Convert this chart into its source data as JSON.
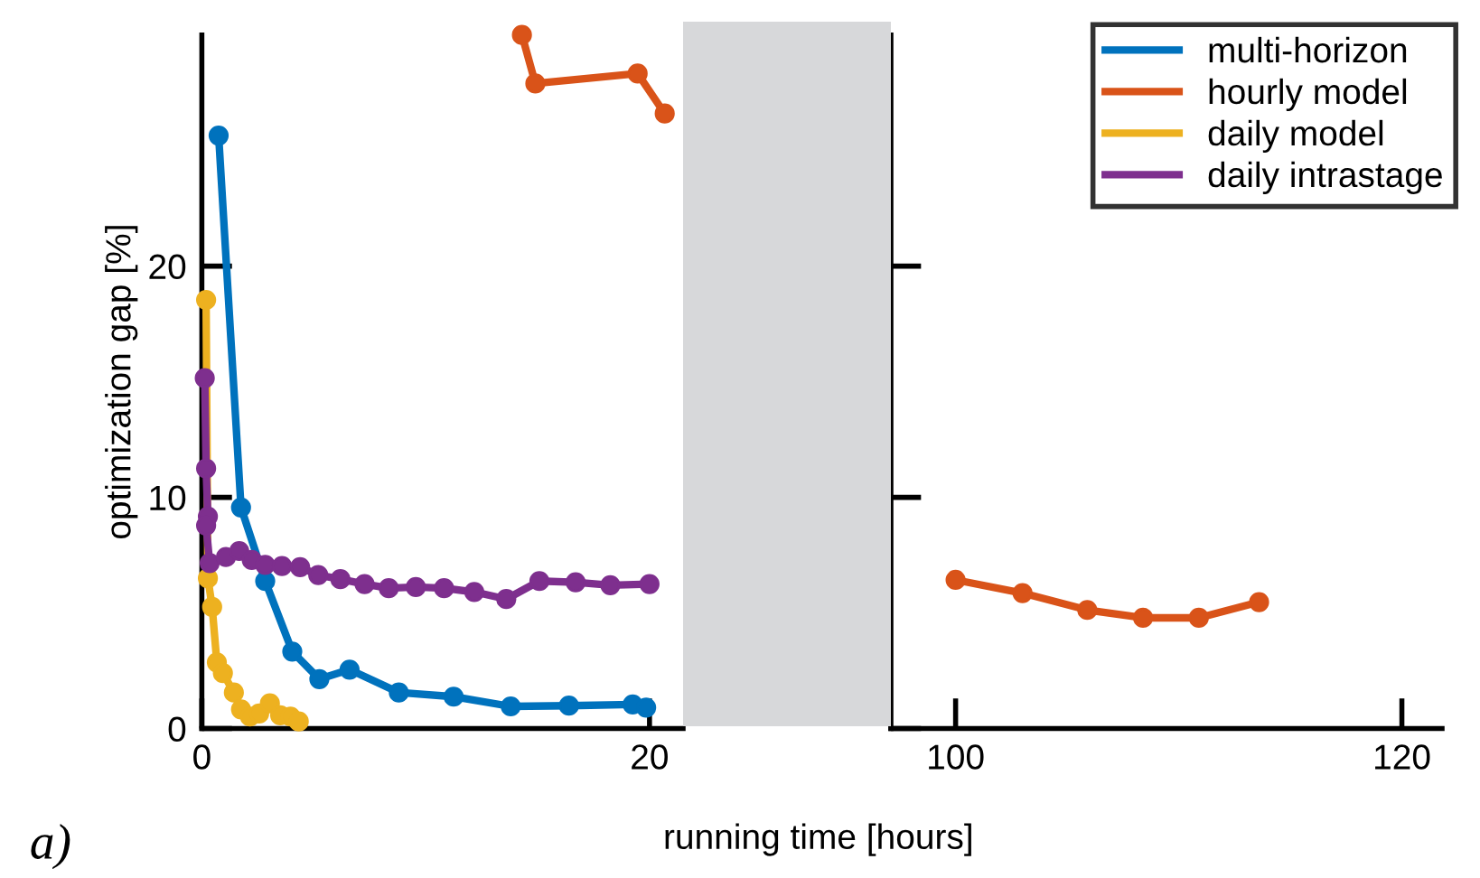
{
  "chart_data": [
    {
      "type": "line",
      "xlabel": "running time [hours]",
      "ylabel": "optimization gap [%]",
      "xlim": [
        0,
        21.5
      ],
      "xticks": [
        0,
        20
      ],
      "ylim": [
        0,
        30
      ],
      "yticks": [
        0,
        10,
        20
      ],
      "marker": "circle",
      "line_style": "solid",
      "grid": false,
      "legend": "top right",
      "annotations": [
        "a)"
      ],
      "series": [
        {
          "name": "multi-horizon",
          "color": "#0072bd",
          "x": [
            0.75,
            1.75,
            2.83,
            4.04,
            5.25,
            6.6,
            8.8,
            11.25,
            13.8,
            16.4,
            19.25,
            19.85
          ],
          "values": [
            25.65,
            9.56,
            6.38,
            3.33,
            2.14,
            2.55,
            1.56,
            1.38,
            0.96,
            0.99,
            1.04,
            0.91
          ]
        },
        {
          "name": "hourly model",
          "color": "#d95319",
          "x": [
            14.3,
            14.9,
            19.47,
            20.68
          ],
          "values": [
            30.0,
            27.9,
            28.33,
            26.6
          ]
        },
        {
          "name": "daily model",
          "color": "#edb120",
          "x": [
            0.19,
            0.27,
            0.46,
            0.67,
            0.94,
            1.43,
            1.75,
            2.15,
            2.56,
            3.04,
            3.5,
            3.96,
            4.33
          ],
          "values": [
            18.54,
            6.5,
            5.26,
            2.86,
            2.4,
            1.56,
            0.83,
            0.52,
            0.65,
            1.09,
            0.57,
            0.52,
            0.31
          ]
        },
        {
          "name": "daily intrastage",
          "color": "#7e2f8e",
          "x": [
            0.13,
            0.19,
            0.27,
            0.19,
            0.35,
            1.08,
            1.67,
            2.23,
            2.83,
            3.58,
            4.39,
            5.2,
            6.19,
            7.27,
            8.35,
            9.56,
            10.82,
            12.17,
            13.6,
            15.08,
            16.7,
            18.25,
            20.0
          ],
          "values": [
            15.16,
            11.25,
            9.17,
            8.78,
            7.16,
            7.42,
            7.68,
            7.29,
            7.08,
            7.03,
            6.98,
            6.64,
            6.46,
            6.25,
            6.07,
            6.12,
            6.07,
            5.91,
            5.6,
            6.38,
            6.33,
            6.2,
            6.25
          ]
        }
      ]
    },
    {
      "type": "line",
      "xlim": [
        97.1,
        121.8
      ],
      "xticks": [
        100,
        120
      ],
      "ylim": [
        0,
        30
      ],
      "yticks": [
        0,
        10,
        20
      ],
      "tick_labels": "x",
      "marker": "circle",
      "line_style": "solid",
      "grid": false,
      "series": [
        {
          "color": "#d95319",
          "x": [
            100,
            103.0,
            105.9,
            108.4,
            110.9,
            113.6
          ],
          "values": [
            6.43,
            5.86,
            5.13,
            4.79,
            4.79,
            5.47
          ]
        }
      ]
    }
  ]
}
